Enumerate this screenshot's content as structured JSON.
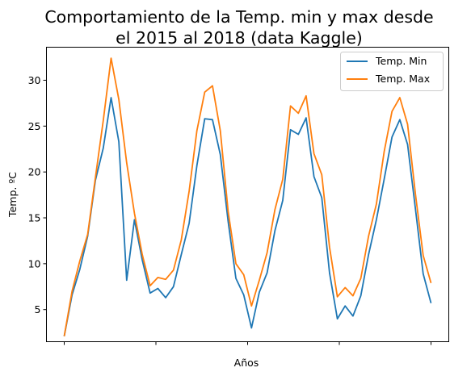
{
  "chart_data": {
    "type": "line",
    "title_lines": [
      "Comportamiento de la Temp. min y max desde",
      "el 2015 al 2018 (data Kaggle)"
    ],
    "xlabel": "Años",
    "ylabel": "Temp. ºC",
    "ylim": [
      1.5,
      33.6
    ],
    "yticks": [
      5,
      10,
      15,
      20,
      25,
      30
    ],
    "xticks_unlabeled": 5,
    "grid": false,
    "legend_position": "upper right",
    "series": [
      {
        "name": "Temp. Min",
        "color": "#1f77b4",
        "values": [
          2.1,
          6.6,
          9.4,
          13.0,
          19.1,
          22.6,
          28.1,
          23.3,
          8.2,
          14.8,
          10.4,
          6.8,
          7.3,
          6.3,
          7.5,
          11.0,
          14.4,
          20.7,
          25.8,
          25.7,
          21.9,
          14.6,
          8.4,
          6.6,
          3.0,
          6.9,
          9.0,
          13.6,
          16.9,
          24.6,
          24.1,
          25.9,
          19.5,
          17.2,
          9.0,
          4.0,
          5.4,
          4.3,
          6.5,
          11.0,
          14.8,
          19.2,
          23.8,
          25.7,
          23.0,
          16.0,
          8.9,
          5.7
        ]
      },
      {
        "name": "Temp. Max",
        "color": "#ff7f0e",
        "values": [
          2.1,
          7.0,
          10.3,
          13.2,
          19.4,
          25.6,
          32.4,
          27.9,
          21.0,
          15.5,
          11.0,
          7.6,
          8.5,
          8.3,
          9.3,
          12.6,
          17.9,
          24.5,
          28.7,
          29.4,
          24.5,
          15.7,
          10.0,
          8.8,
          5.4,
          8.2,
          11.2,
          15.9,
          19.2,
          27.2,
          26.4,
          28.3,
          22.0,
          19.7,
          11.8,
          6.4,
          7.4,
          6.5,
          8.4,
          13.0,
          16.5,
          22.2,
          26.6,
          28.1,
          25.2,
          17.6,
          10.9,
          7.9
        ]
      }
    ]
  }
}
